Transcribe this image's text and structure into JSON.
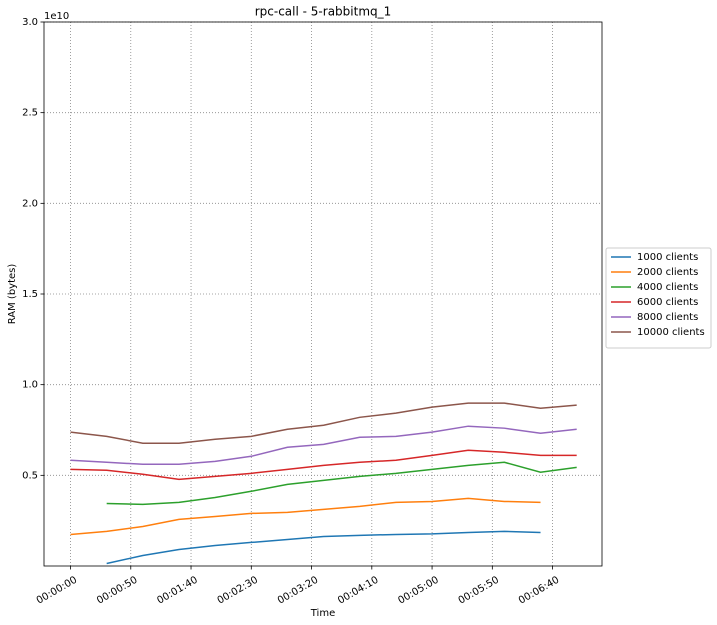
{
  "chart_data": {
    "type": "line",
    "title": "rpc-call - 5-rabbitmq_1",
    "x_label": "Time",
    "y_label": "RAM (bytes)",
    "y_offset_label": "1e10",
    "x": [
      0,
      30,
      60,
      90,
      120,
      150,
      180,
      210,
      240,
      270,
      300,
      330,
      360,
      390,
      420
    ],
    "series": [
      {
        "name": "1000 clients",
        "color": "#1f77b4",
        "values": [
          null,
          140000000.0,
          580000000.0,
          910000000.0,
          1130000000.0,
          1300000000.0,
          1460000000.0,
          1630000000.0,
          1690000000.0,
          1740000000.0,
          1770000000.0,
          1850000000.0,
          1910000000.0,
          1850000000.0,
          null
        ]
      },
      {
        "name": "2000 clients",
        "color": "#ff7f0e",
        "values": [
          1740000000.0,
          1910000000.0,
          2180000000.0,
          2570000000.0,
          2730000000.0,
          2900000000.0,
          2960000000.0,
          3120000000.0,
          3290000000.0,
          3510000000.0,
          3560000000.0,
          3730000000.0,
          3560000000.0,
          3510000000.0,
          null
        ]
      },
      {
        "name": "4000 clients",
        "color": "#2ca02c",
        "values": [
          null,
          3450000000.0,
          3400000000.0,
          3510000000.0,
          3780000000.0,
          4120000000.0,
          4500000000.0,
          4720000000.0,
          4940000000.0,
          5110000000.0,
          5330000000.0,
          5550000000.0,
          5720000000.0,
          5170000000.0,
          5440000000.0
        ]
      },
      {
        "name": "6000 clients",
        "color": "#d62728",
        "values": [
          5330000000.0,
          5280000000.0,
          5060000000.0,
          4780000000.0,
          4940000000.0,
          5110000000.0,
          5330000000.0,
          5550000000.0,
          5720000000.0,
          5830000000.0,
          6100000000.0,
          6380000000.0,
          6270000000.0,
          6100000000.0,
          6100000000.0
        ]
      },
      {
        "name": "8000 clients",
        "color": "#9467bd",
        "values": [
          5830000000.0,
          5720000000.0,
          5610000000.0,
          5610000000.0,
          5770000000.0,
          6050000000.0,
          6550000000.0,
          6710000000.0,
          7100000000.0,
          7150000000.0,
          7380000000.0,
          7710000000.0,
          7600000000.0,
          7320000000.0,
          7540000000.0
        ]
      },
      {
        "name": "10000 clients",
        "color": "#8c564b",
        "values": [
          7380000000.0,
          7150000000.0,
          6770000000.0,
          6770000000.0,
          6990000000.0,
          7150000000.0,
          7540000000.0,
          7760000000.0,
          8200000000.0,
          8430000000.0,
          8760000000.0,
          8980000000.0,
          8980000000.0,
          8700000000.0,
          8870000000.0
        ]
      }
    ],
    "xlim": [
      -22,
      441
    ],
    "xticks": [
      {
        "value": 0,
        "label": "00:00:00"
      },
      {
        "value": 50,
        "label": "00:00:50"
      },
      {
        "value": 100,
        "label": "00:01:40"
      },
      {
        "value": 150,
        "label": "00:02:30"
      },
      {
        "value": 200,
        "label": "00:03:20"
      },
      {
        "value": 250,
        "label": "00:04:10"
      },
      {
        "value": 300,
        "label": "00:05:00"
      },
      {
        "value": 350,
        "label": "00:05:50"
      },
      {
        "value": 400,
        "label": "00:06:40"
      }
    ],
    "ylim": [
      0,
      30000000000
    ],
    "yticks": [
      {
        "value": 5000000000,
        "label": "0.5"
      },
      {
        "value": 10000000000,
        "label": "1.0"
      },
      {
        "value": 15000000000,
        "label": "1.5"
      },
      {
        "value": 20000000000,
        "label": "2.0"
      },
      {
        "value": 25000000000,
        "label": "2.5"
      },
      {
        "value": 30000000000,
        "label": "3.0"
      }
    ],
    "grid": true,
    "legend": "outside right"
  }
}
